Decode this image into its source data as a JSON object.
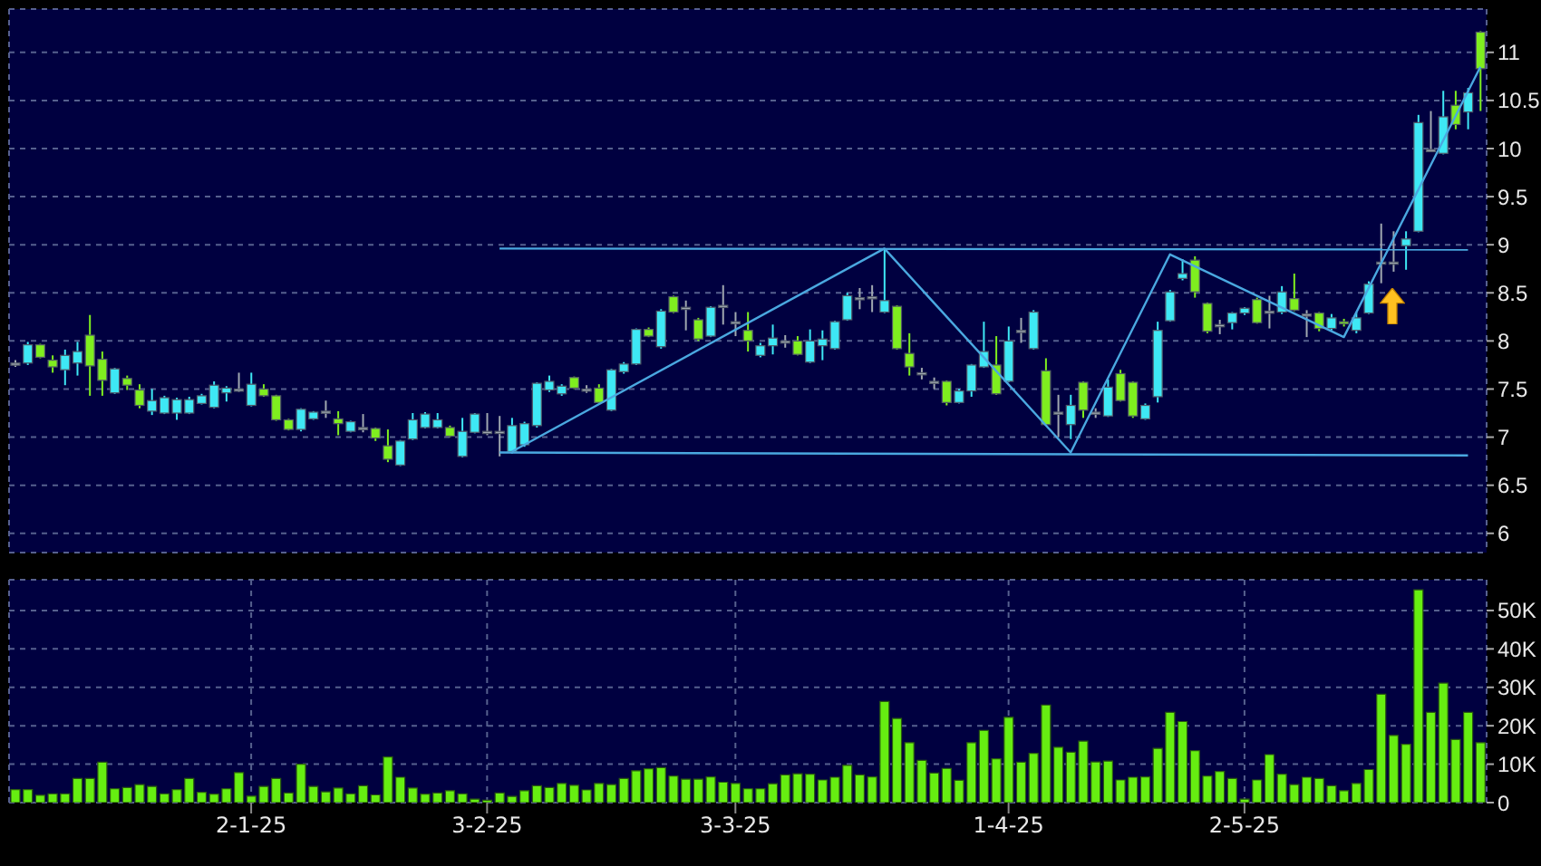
{
  "chart_data": [
    {
      "type": "candlestick",
      "tick_labels": "y",
      "grid": true,
      "marker": "none",
      "categories": [
        null,
        null,
        null,
        null,
        null,
        null,
        null,
        null,
        null,
        null,
        null,
        null,
        null,
        null,
        null,
        null,
        null,
        null,
        null,
        null,
        null,
        null,
        null,
        null,
        null,
        null,
        null,
        null,
        null,
        null,
        null,
        null,
        null,
        null,
        null,
        null,
        null,
        null,
        null,
        null,
        null,
        null,
        null,
        null,
        null,
        null,
        null,
        null,
        null,
        null,
        null,
        null,
        null,
        null,
        null,
        null,
        null,
        null,
        null,
        null,
        null,
        null,
        null,
        null,
        null,
        null,
        null,
        null,
        null,
        null,
        null,
        null,
        null,
        null,
        null,
        null,
        null,
        null,
        null,
        null,
        null,
        null,
        null,
        null,
        null,
        null,
        null,
        null,
        null,
        null,
        null,
        null,
        null,
        null,
        null,
        null,
        null,
        null,
        null,
        null,
        null,
        null,
        null,
        null,
        null,
        null,
        null,
        null,
        null,
        null,
        null,
        null,
        null,
        null,
        null,
        null,
        null,
        null,
        null
      ],
      "ohlc": [
        [
          7.75,
          7.8,
          7.73,
          7.77
        ],
        [
          7.77,
          7.99,
          7.75,
          7.96
        ],
        [
          7.96,
          7.97,
          7.82,
          7.83
        ],
        [
          7.8,
          7.85,
          7.67,
          7.73
        ],
        [
          7.7,
          7.91,
          7.54,
          7.85
        ],
        [
          7.77,
          7.99,
          7.64,
          7.89
        ],
        [
          8.06,
          8.27,
          7.43,
          7.74
        ],
        [
          7.81,
          7.89,
          7.43,
          7.59
        ],
        [
          7.46,
          7.72,
          7.45,
          7.71
        ],
        [
          7.61,
          7.64,
          7.49,
          7.54
        ],
        [
          7.49,
          7.55,
          7.3,
          7.33
        ],
        [
          7.27,
          7.5,
          7.23,
          7.38
        ],
        [
          7.25,
          7.43,
          7.24,
          7.41
        ],
        [
          7.25,
          7.41,
          7.18,
          7.39
        ],
        [
          7.25,
          7.42,
          7.24,
          7.39
        ],
        [
          7.35,
          7.45,
          7.34,
          7.43
        ],
        [
          7.31,
          7.58,
          7.3,
          7.54
        ],
        [
          7.46,
          7.53,
          7.37,
          7.51
        ],
        [
          7.49,
          7.67,
          7.47,
          7.5
        ],
        [
          7.33,
          7.67,
          7.32,
          7.55
        ],
        [
          7.5,
          7.55,
          7.42,
          7.43
        ],
        [
          7.43,
          7.44,
          7.17,
          7.18
        ],
        [
          7.18,
          7.19,
          7.07,
          7.08
        ],
        [
          7.08,
          7.3,
          7.06,
          7.29
        ],
        [
          7.19,
          7.27,
          7.18,
          7.26
        ],
        [
          7.26,
          7.38,
          7.2,
          7.27
        ],
        [
          7.19,
          7.27,
          7.02,
          7.14
        ],
        [
          7.06,
          7.17,
          7.05,
          7.16
        ],
        [
          7.09,
          7.24,
          7.05,
          7.1
        ],
        [
          7.09,
          7.1,
          6.96,
          6.99
        ],
        [
          6.91,
          7.08,
          6.74,
          6.77
        ],
        [
          6.71,
          6.97,
          6.7,
          6.96
        ],
        [
          6.98,
          7.25,
          6.97,
          7.18
        ],
        [
          7.1,
          7.26,
          7.09,
          7.24
        ],
        [
          7.1,
          7.25,
          7.09,
          7.18
        ],
        [
          7.1,
          7.12,
          7.0,
          7.01
        ],
        [
          6.8,
          7.2,
          6.79,
          7.06
        ],
        [
          7.05,
          7.25,
          7.04,
          7.24
        ],
        [
          7.05,
          7.25,
          7.02,
          7.06
        ],
        [
          7.05,
          7.22,
          6.8,
          7.06
        ],
        [
          6.85,
          7.2,
          6.83,
          7.12
        ],
        [
          6.92,
          7.16,
          6.9,
          7.14
        ],
        [
          7.12,
          7.57,
          7.1,
          7.56
        ],
        [
          7.49,
          7.64,
          7.47,
          7.58
        ],
        [
          7.45,
          7.55,
          7.43,
          7.53
        ],
        [
          7.62,
          7.63,
          7.5,
          7.51
        ],
        [
          7.49,
          7.54,
          7.46,
          7.5
        ],
        [
          7.51,
          7.55,
          7.35,
          7.36
        ],
        [
          7.28,
          7.71,
          7.27,
          7.7
        ],
        [
          7.68,
          7.78,
          7.66,
          7.76
        ],
        [
          7.76,
          8.13,
          7.75,
          8.12
        ],
        [
          8.12,
          8.14,
          8.04,
          8.05
        ],
        [
          7.94,
          8.33,
          7.92,
          8.31
        ],
        [
          8.46,
          8.47,
          8.29,
          8.3
        ],
        [
          8.35,
          8.42,
          8.11,
          8.33
        ],
        [
          8.22,
          8.24,
          8.0,
          8.02
        ],
        [
          8.05,
          8.36,
          8.04,
          8.35
        ],
        [
          8.36,
          8.58,
          8.17,
          8.37
        ],
        [
          8.19,
          8.3,
          8.05,
          8.2
        ],
        [
          8.11,
          8.3,
          7.89,
          8.0
        ],
        [
          7.85,
          7.98,
          7.83,
          7.95
        ],
        [
          7.95,
          8.17,
          7.86,
          8.03
        ],
        [
          7.99,
          8.06,
          7.93,
          8.0
        ],
        [
          8.0,
          8.05,
          7.85,
          7.86
        ],
        [
          7.78,
          8.12,
          7.77,
          8.0
        ],
        [
          7.95,
          8.11,
          7.8,
          8.02
        ],
        [
          7.92,
          8.21,
          7.91,
          8.2
        ],
        [
          8.22,
          8.5,
          8.21,
          8.47
        ],
        [
          8.44,
          8.55,
          8.33,
          8.45
        ],
        [
          8.45,
          8.58,
          8.3,
          8.46
        ],
        [
          8.3,
          8.96,
          8.29,
          8.42
        ],
        [
          8.36,
          8.37,
          7.91,
          7.92
        ],
        [
          7.87,
          8.08,
          7.64,
          7.73
        ],
        [
          7.66,
          7.72,
          7.6,
          7.67
        ],
        [
          7.57,
          7.62,
          7.5,
          7.58
        ],
        [
          7.58,
          7.59,
          7.33,
          7.36
        ],
        [
          7.36,
          7.5,
          7.35,
          7.48
        ],
        [
          7.48,
          7.76,
          7.42,
          7.75
        ],
        [
          7.73,
          8.2,
          7.72,
          7.89
        ],
        [
          7.75,
          8.05,
          7.44,
          7.45
        ],
        [
          7.58,
          8.15,
          7.57,
          8.0
        ],
        [
          8.1,
          8.24,
          7.98,
          8.11
        ],
        [
          7.92,
          8.32,
          7.91,
          8.3
        ],
        [
          7.69,
          7.82,
          7.12,
          7.13
        ],
        [
          7.26,
          7.44,
          7.0,
          7.25
        ],
        [
          7.13,
          7.44,
          6.98,
          7.33
        ],
        [
          7.57,
          7.58,
          7.2,
          7.28
        ],
        [
          7.26,
          7.3,
          7.2,
          7.25
        ],
        [
          7.22,
          7.6,
          7.21,
          7.52
        ],
        [
          7.66,
          7.7,
          7.37,
          7.38
        ],
        [
          7.57,
          7.58,
          7.2,
          7.22
        ],
        [
          7.19,
          7.35,
          7.18,
          7.33
        ],
        [
          7.42,
          8.2,
          7.36,
          8.11
        ],
        [
          8.21,
          8.53,
          8.2,
          8.51
        ],
        [
          8.65,
          8.85,
          8.63,
          8.7
        ],
        [
          8.84,
          8.88,
          8.45,
          8.51
        ],
        [
          8.39,
          8.4,
          8.08,
          8.1
        ],
        [
          8.16,
          8.22,
          8.07,
          8.17
        ],
        [
          8.19,
          8.3,
          8.12,
          8.29
        ],
        [
          8.29,
          8.35,
          8.27,
          8.34
        ],
        [
          8.43,
          8.45,
          8.18,
          8.19
        ],
        [
          8.3,
          8.47,
          8.13,
          8.31
        ],
        [
          8.3,
          8.57,
          8.28,
          8.51
        ],
        [
          8.44,
          8.7,
          8.31,
          8.32
        ],
        [
          8.28,
          8.32,
          8.04,
          8.27
        ],
        [
          8.29,
          8.3,
          8.1,
          8.13
        ],
        [
          8.13,
          8.28,
          8.11,
          8.24
        ],
        [
          8.2,
          8.23,
          8.15,
          8.19
        ],
        [
          8.11,
          8.3,
          8.08,
          8.24
        ],
        [
          8.29,
          8.62,
          8.28,
          8.59
        ],
        [
          8.81,
          9.22,
          8.6,
          8.82
        ],
        [
          8.81,
          9.14,
          8.72,
          8.82
        ],
        [
          8.99,
          9.14,
          8.74,
          9.06
        ],
        [
          9.14,
          10.35,
          9.13,
          10.27
        ],
        [
          9.98,
          10.39,
          9.97,
          9.99
        ],
        [
          9.95,
          10.6,
          9.94,
          10.33
        ],
        [
          10.45,
          10.6,
          10.2,
          10.25
        ],
        [
          10.38,
          10.63,
          10.2,
          10.58
        ],
        [
          11.21,
          11.22,
          10.39,
          10.83
        ]
      ],
      "colors": [
        "#a0a8b0",
        "#3ee8f5",
        "#7fee1f",
        "#7fee1f",
        "#3ee8f5",
        "#3ee8f5",
        "#7fee1f",
        "#7fee1f",
        "#3ee8f5",
        "#7fee1f",
        "#7fee1f",
        "#3ee8f5",
        "#3ee8f5",
        "#3ee8f5",
        "#3ee8f5",
        "#3ee8f5",
        "#3ee8f5",
        "#3ee8f5",
        "#a0a8b0",
        "#3ee8f5",
        "#7fee1f",
        "#7fee1f",
        "#7fee1f",
        "#3ee8f5",
        "#3ee8f5",
        "#a0a8b0",
        "#7fee1f",
        "#3ee8f5",
        "#a0a8b0",
        "#7fee1f",
        "#7fee1f",
        "#3ee8f5",
        "#3ee8f5",
        "#3ee8f5",
        "#3ee8f5",
        "#7fee1f",
        "#3ee8f5",
        "#3ee8f5",
        "#a0a8b0",
        "#a0a8b0",
        "#3ee8f5",
        "#3ee8f5",
        "#3ee8f5",
        "#3ee8f5",
        "#3ee8f5",
        "#7fee1f",
        "#a0a8b0",
        "#7fee1f",
        "#3ee8f5",
        "#3ee8f5",
        "#3ee8f5",
        "#7fee1f",
        "#3ee8f5",
        "#7fee1f",
        "#a0a8b0",
        "#7fee1f",
        "#3ee8f5",
        "#a0a8b0",
        "#a0a8b0",
        "#7fee1f",
        "#3ee8f5",
        "#3ee8f5",
        "#a0a8b0",
        "#7fee1f",
        "#3ee8f5",
        "#3ee8f5",
        "#3ee8f5",
        "#3ee8f5",
        "#a0a8b0",
        "#a0a8b0",
        "#3ee8f5",
        "#7fee1f",
        "#7fee1f",
        "#a0a8b0",
        "#a0a8b0",
        "#7fee1f",
        "#3ee8f5",
        "#3ee8f5",
        "#3ee8f5",
        "#7fee1f",
        "#3ee8f5",
        "#a0a8b0",
        "#3ee8f5",
        "#7fee1f",
        "#a0a8b0",
        "#3ee8f5",
        "#7fee1f",
        "#a0a8b0",
        "#3ee8f5",
        "#7fee1f",
        "#7fee1f",
        "#3ee8f5",
        "#3ee8f5",
        "#3ee8f5",
        "#3ee8f5",
        "#7fee1f",
        "#7fee1f",
        "#a0a8b0",
        "#3ee8f5",
        "#3ee8f5",
        "#7fee1f",
        "#a0a8b0",
        "#3ee8f5",
        "#7fee1f",
        "#a0a8b0",
        "#7fee1f",
        "#3ee8f5",
        "#7fee1f",
        "#3ee8f5",
        "#3ee8f5",
        "#a0a8b0",
        "#a0a8b0",
        "#3ee8f5",
        "#3ee8f5",
        "#a0a8b0",
        "#3ee8f5",
        "#7fee1f",
        "#3ee8f5",
        "#7fee1f"
      ],
      "series": [
        {
          "type": "line",
          "color": "#4aa8e0",
          "values": [
            null,
            null,
            null,
            null,
            null,
            null,
            null,
            null,
            null,
            null,
            null,
            null,
            null,
            null,
            null,
            null,
            null,
            null,
            null,
            null,
            null,
            null,
            null,
            null,
            null,
            null,
            null,
            null,
            null,
            null,
            null,
            null,
            null,
            null,
            null,
            null,
            null,
            null,
            null,
            null,
            6.85,
            null,
            null,
            null,
            null,
            null,
            null,
            null,
            null,
            null,
            null,
            null,
            null,
            null,
            null,
            null,
            null,
            null,
            null,
            null,
            null,
            null,
            null,
            null,
            null,
            null,
            null,
            null,
            null,
            null,
            8.96,
            null,
            null,
            null,
            null,
            null,
            null,
            null,
            null,
            null,
            null,
            null,
            null,
            null,
            null,
            6.84,
            null,
            null,
            null,
            null,
            null,
            null,
            null,
            8.9,
            null,
            null,
            null,
            null,
            null,
            null,
            null,
            null,
            null,
            null,
            null,
            null,
            null,
            8.04,
            null,
            null,
            null,
            null,
            null,
            null,
            null,
            null,
            null,
            null,
            10.85
          ]
        },
        {
          "type": "line",
          "color": "#4aa8e0",
          "values": [
            null,
            null,
            null,
            null,
            null,
            null,
            null,
            null,
            null,
            null,
            null,
            null,
            null,
            null,
            null,
            null,
            null,
            null,
            null,
            null,
            null,
            null,
            null,
            null,
            null,
            null,
            null,
            null,
            null,
            null,
            null,
            null,
            null,
            null,
            null,
            null,
            null,
            null,
            null,
            8.96,
            null,
            null,
            null,
            null,
            null,
            null,
            null,
            null,
            null,
            null,
            null,
            null,
            null,
            null,
            null,
            null,
            null,
            null,
            null,
            null,
            null,
            null,
            null,
            null,
            null,
            null,
            null,
            null,
            null,
            null,
            null,
            null,
            null,
            null,
            null,
            null,
            null,
            null,
            null,
            null,
            null,
            null,
            null,
            null,
            null,
            null,
            null,
            null,
            null,
            null,
            null,
            null,
            null,
            null,
            null,
            null,
            null,
            null,
            null,
            null,
            null,
            null,
            null,
            null,
            null,
            null,
            null,
            null,
            null,
            null,
            null,
            null,
            null,
            null,
            null,
            null,
            null,
            8.95,
            null
          ]
        },
        {
          "type": "line",
          "color": "#4aa8e0",
          "values": [
            null,
            null,
            null,
            null,
            null,
            null,
            null,
            null,
            null,
            null,
            null,
            null,
            null,
            null,
            null,
            null,
            null,
            null,
            null,
            null,
            null,
            null,
            null,
            null,
            null,
            null,
            null,
            null,
            null,
            null,
            null,
            null,
            null,
            null,
            null,
            null,
            null,
            null,
            null,
            6.84,
            null,
            null,
            null,
            null,
            null,
            null,
            null,
            null,
            null,
            null,
            null,
            null,
            null,
            null,
            null,
            null,
            null,
            null,
            null,
            null,
            null,
            null,
            null,
            null,
            null,
            null,
            null,
            null,
            null,
            null,
            null,
            null,
            null,
            null,
            null,
            null,
            null,
            null,
            null,
            null,
            null,
            null,
            null,
            null,
            null,
            null,
            null,
            null,
            null,
            null,
            null,
            null,
            null,
            null,
            null,
            null,
            null,
            null,
            null,
            null,
            null,
            null,
            null,
            null,
            null,
            null,
            null,
            null,
            null,
            null,
            null,
            null,
            null,
            null,
            null,
            null,
            null,
            6.81,
            null
          ]
        }
      ],
      "ylim": [
        5.8,
        11.45
      ],
      "yticks": [
        6,
        6.5,
        7,
        7.5,
        8,
        8.5,
        9,
        9.5,
        10,
        10.5,
        11
      ]
    },
    {
      "type": "bar",
      "grid": true,
      "color": "#66ee11",
      "categories": [
        null,
        null,
        null,
        null,
        null,
        null,
        null,
        null,
        null,
        null,
        null,
        null,
        null,
        null,
        null,
        null,
        null,
        null,
        null,
        "2-1-25",
        null,
        null,
        null,
        null,
        null,
        null,
        null,
        null,
        null,
        null,
        null,
        null,
        null,
        null,
        null,
        null,
        null,
        null,
        "3-2-25",
        null,
        null,
        null,
        null,
        null,
        null,
        null,
        null,
        null,
        null,
        null,
        null,
        null,
        null,
        null,
        null,
        null,
        null,
        null,
        "3-3-25",
        null,
        null,
        null,
        null,
        null,
        null,
        null,
        null,
        null,
        null,
        null,
        null,
        null,
        null,
        null,
        null,
        null,
        null,
        null,
        null,
        null,
        "1-4-25",
        null,
        null,
        null,
        null,
        null,
        null,
        null,
        null,
        null,
        null,
        null,
        null,
        null,
        null,
        null,
        null,
        null,
        null,
        "2-5-25",
        null,
        null,
        null,
        null,
        null,
        null,
        null,
        null,
        null,
        null,
        null,
        null,
        null,
        null,
        null,
        null,
        null,
        null,
        null
      ],
      "values": [
        3400,
        3400,
        1900,
        2300,
        2300,
        6300,
        6300,
        10500,
        3600,
        3900,
        4700,
        4200,
        2300,
        3400,
        6300,
        2700,
        2200,
        3600,
        7800,
        1700,
        4200,
        6300,
        2500,
        10000,
        4200,
        2800,
        3800,
        2300,
        4400,
        2000,
        11900,
        6600,
        3800,
        2200,
        2500,
        3100,
        2300,
        900,
        600,
        2500,
        1600,
        3100,
        4400,
        3900,
        5000,
        4500,
        3300,
        5000,
        4700,
        6300,
        8300,
        8800,
        9100,
        6900,
        6100,
        6100,
        6700,
        5300,
        5000,
        3600,
        3600,
        4900,
        7200,
        7500,
        7400,
        5900,
        6600,
        9700,
        7200,
        6700,
        26300,
        21900,
        15600,
        11000,
        7700,
        8900,
        5800,
        15600,
        18800,
        11400,
        22200,
        10500,
        12800,
        25400,
        14400,
        13100,
        16000,
        10600,
        10800,
        5900,
        6600,
        6700,
        14100,
        23500,
        21100,
        13500,
        6900,
        8100,
        6300,
        900,
        5900,
        12500,
        7400,
        4700,
        6600,
        6300,
        4400,
        3100,
        5000,
        8600,
        28200,
        17500,
        15200,
        55400,
        23500,
        31100,
        16400,
        23500,
        15600
      ],
      "ylim": [
        0,
        58000
      ],
      "yticks": [
        0,
        {
          "value": 10000,
          "label": "10K"
        },
        {
          "value": 20000,
          "label": "20K"
        },
        {
          "value": 30000,
          "label": "30K"
        },
        {
          "value": 40000,
          "label": "40K"
        },
        {
          "value": 50000,
          "label": "50K"
        }
      ]
    }
  ]
}
